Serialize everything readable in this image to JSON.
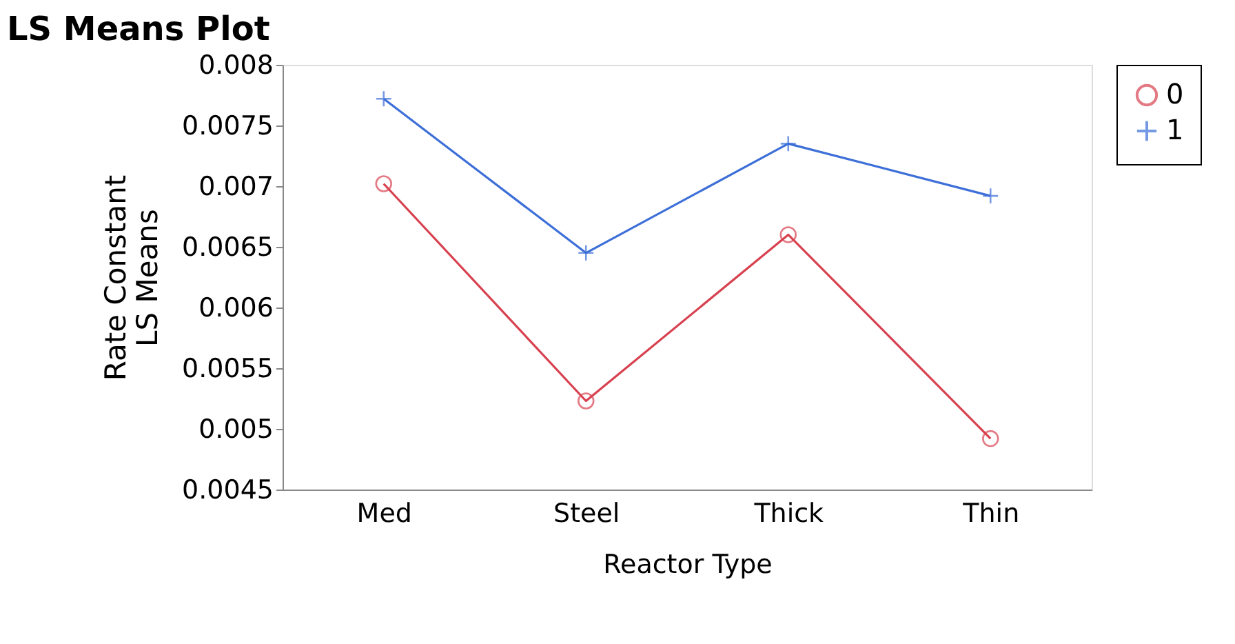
{
  "chart_data": {
    "type": "line",
    "title": "LS Means Plot",
    "xlabel": "Reactor Type",
    "ylabel": "Rate Constant\nLS Means",
    "categories": [
      "Med",
      "Steel",
      "Thick",
      "Thin"
    ],
    "series": [
      {
        "name": "0",
        "color": "#d8414f",
        "marker": "circle",
        "values": [
          0.00702,
          0.00523,
          0.0066,
          0.00492
        ]
      },
      {
        "name": "1",
        "color": "#3d6fd8",
        "marker": "cross",
        "values": [
          0.00772,
          0.00645,
          0.00735,
          0.00692
        ]
      }
    ],
    "ylim": [
      0.0045,
      0.008
    ],
    "yticks": [
      0.0045,
      0.005,
      0.0055,
      0.006,
      0.0065,
      0.007,
      0.0075,
      0.008
    ],
    "grid": false,
    "legend": "top right"
  }
}
